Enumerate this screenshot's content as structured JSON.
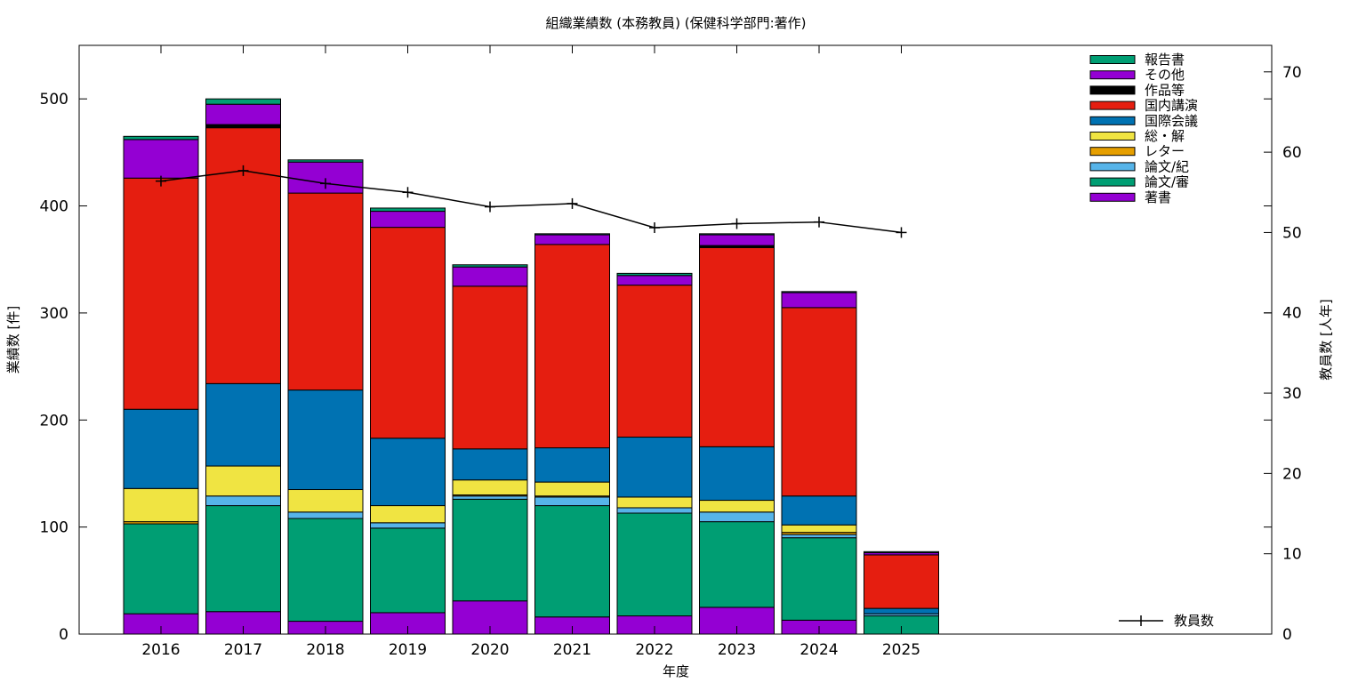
{
  "chart_data": {
    "type": "bar",
    "stacked": true,
    "title": "組織業績数 (本務教員) (保健科学部門:著作)",
    "xlabel": "年度",
    "ylabel": "業績数 [件]",
    "y2label": "教員数 [人年]",
    "ylim": [
      0,
      550
    ],
    "y2lim": [
      0,
      73.3
    ],
    "yticks": [
      "0",
      "100",
      "200",
      "300",
      "400",
      "500"
    ],
    "y2ticks": [
      "0",
      "10",
      "20",
      "30",
      "40",
      "50",
      "60",
      "70"
    ],
    "grid": false,
    "legend_position": "top-right",
    "categories": [
      "2016",
      "2017",
      "2018",
      "2019",
      "2020",
      "2021",
      "2022",
      "2023",
      "2024",
      "2025"
    ],
    "series": [
      {
        "name": "著書",
        "color": "#9400d3",
        "values": [
          19,
          21,
          12,
          20,
          31,
          16,
          17,
          25,
          13,
          0
        ]
      },
      {
        "name": "論文/審",
        "color": "#009e73",
        "values": [
          84,
          99,
          96,
          79,
          95,
          104,
          96,
          80,
          77,
          17
        ]
      },
      {
        "name": "論文/紀",
        "color": "#56b4e9",
        "values": [
          0,
          9,
          6,
          5,
          3,
          8,
          5,
          9,
          3,
          2
        ]
      },
      {
        "name": "レター",
        "color": "#e69f00",
        "values": [
          2,
          0,
          0,
          0,
          1,
          1,
          0,
          0,
          2,
          0
        ]
      },
      {
        "name": "総・解",
        "color": "#f0e442",
        "values": [
          31,
          28,
          21,
          16,
          14,
          13,
          10,
          11,
          7,
          0
        ]
      },
      {
        "name": "国際会議",
        "color": "#0072b2",
        "values": [
          74,
          77,
          93,
          63,
          29,
          32,
          56,
          50,
          27,
          5
        ]
      },
      {
        "name": "国内講演",
        "color": "#e51e10",
        "values": [
          216,
          239,
          184,
          197,
          152,
          190,
          142,
          186,
          176,
          50
        ]
      },
      {
        "name": "作品等",
        "color": "#000000",
        "values": [
          0,
          3,
          0,
          0,
          0,
          0,
          0,
          2,
          0,
          0
        ]
      },
      {
        "name": "その他",
        "color": "#9400d3",
        "values": [
          36,
          19,
          29,
          15,
          18,
          9,
          9,
          10,
          14,
          2
        ]
      },
      {
        "name": "報告書",
        "color": "#009e73",
        "values": [
          3,
          5,
          2,
          3,
          2,
          1,
          2,
          1,
          1,
          1
        ]
      }
    ],
    "line_series": {
      "name": "教員数",
      "color": "#000000",
      "values": [
        56.4,
        57.7,
        56.1,
        55.0,
        53.2,
        53.6,
        50.6,
        51.1,
        51.3,
        50.0
      ]
    }
  }
}
